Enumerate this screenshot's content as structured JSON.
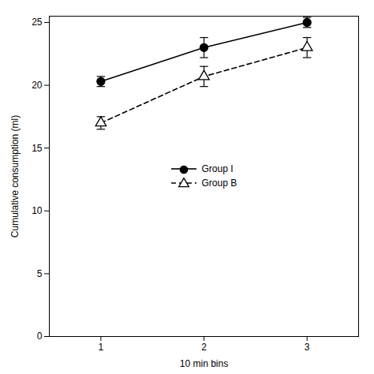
{
  "chart_data": {
    "type": "line",
    "xlabel": "10 min bins",
    "ylabel": "Cumulative consumption (ml)",
    "x": [
      1,
      2,
      3
    ],
    "series": [
      {
        "name": "Group I",
        "color": "#000000",
        "values": [
          20.3,
          23.0,
          25.0
        ],
        "yerr": [
          0.4,
          0.8,
          0.4
        ],
        "marker": "circle",
        "line_style": "solid"
      },
      {
        "name": "Group B",
        "color": "#000000",
        "values": [
          17.0,
          20.7,
          23.0
        ],
        "yerr": [
          0.5,
          0.8,
          0.8
        ],
        "marker": "triangle_open",
        "line_style": "dashed"
      }
    ],
    "xlim": [
      0.5,
      3.5
    ],
    "ylim": [
      0,
      25.5
    ],
    "xticks": [
      1,
      2,
      3
    ],
    "yticks": [
      0,
      5,
      10,
      15,
      20,
      25
    ],
    "legend": "center"
  }
}
